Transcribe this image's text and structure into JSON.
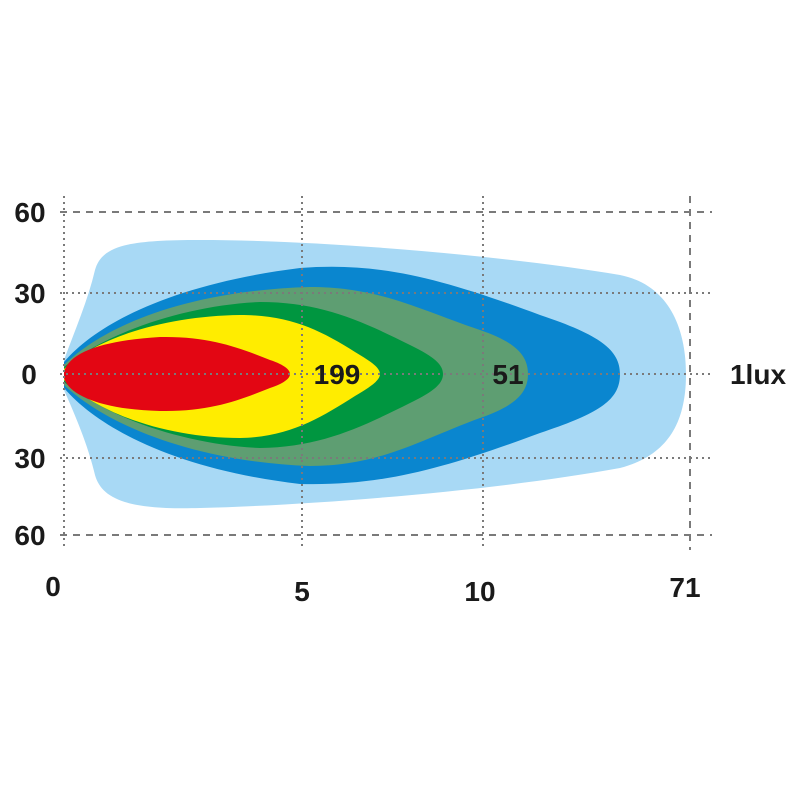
{
  "chart_data": {
    "type": "contour",
    "description_labels": {
      "y_ticks_top": [
        "60",
        "30"
      ],
      "y_tick_center": "0",
      "y_ticks_bottom": [
        "30",
        "60"
      ],
      "x_ticks": [
        "0",
        "5",
        "10",
        "71"
      ],
      "contour_labels": [
        "199",
        "51"
      ],
      "outer_label": "1lux"
    },
    "zones": [
      {
        "color": "#a8d9f5"
      },
      {
        "color": "#0a86cf"
      },
      {
        "color": "#5e9e72"
      },
      {
        "color": "#009640"
      },
      {
        "color": "#ffed00"
      },
      {
        "color": "#e30613"
      }
    ],
    "grid": true
  }
}
